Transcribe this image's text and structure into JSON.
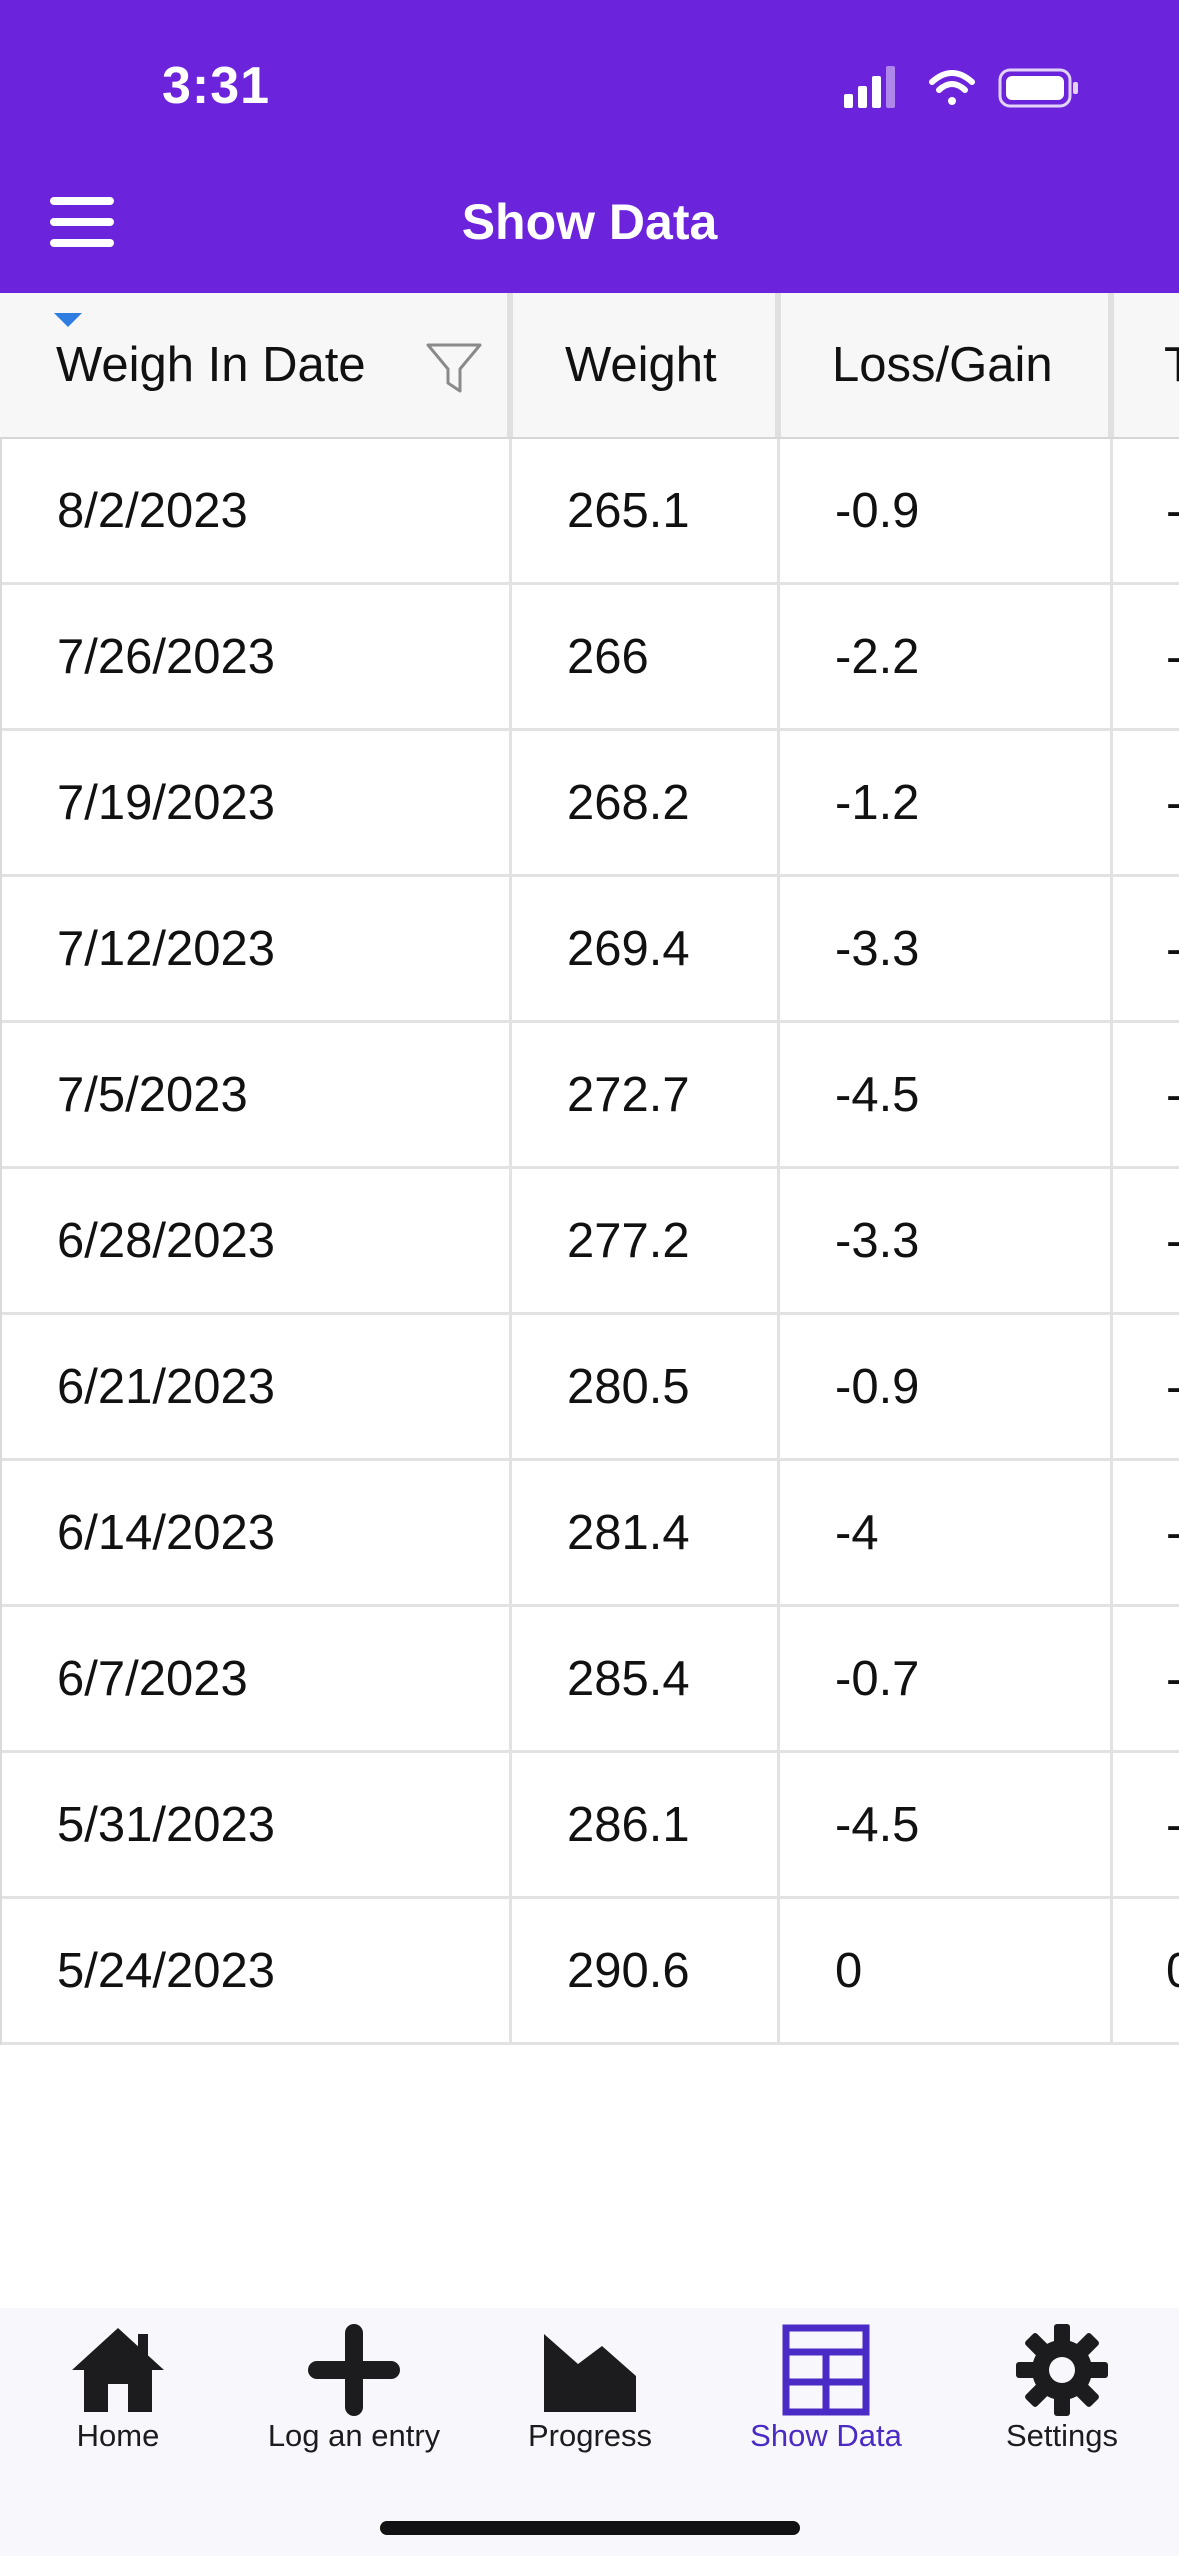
{
  "status_bar": {
    "time": "3:31"
  },
  "header": {
    "title": "Show Data"
  },
  "grid": {
    "columns": [
      "Weigh In Date",
      "Weight",
      "Loss/Gain",
      "T"
    ],
    "rows": [
      {
        "date": "8/2/2023",
        "weight": "265.1",
        "loss_gain": "-0.9",
        "partial": "-"
      },
      {
        "date": "7/26/2023",
        "weight": "266",
        "loss_gain": "-2.2",
        "partial": "-"
      },
      {
        "date": "7/19/2023",
        "weight": "268.2",
        "loss_gain": "-1.2",
        "partial": "-"
      },
      {
        "date": "7/12/2023",
        "weight": "269.4",
        "loss_gain": "-3.3",
        "partial": "-"
      },
      {
        "date": "7/5/2023",
        "weight": "272.7",
        "loss_gain": "-4.5",
        "partial": "-"
      },
      {
        "date": "6/28/2023",
        "weight": "277.2",
        "loss_gain": "-3.3",
        "partial": "-"
      },
      {
        "date": "6/21/2023",
        "weight": "280.5",
        "loss_gain": "-0.9",
        "partial": "-"
      },
      {
        "date": "6/14/2023",
        "weight": "281.4",
        "loss_gain": "-4",
        "partial": "-"
      },
      {
        "date": "6/7/2023",
        "weight": "285.4",
        "loss_gain": "-0.7",
        "partial": "-"
      },
      {
        "date": "5/31/2023",
        "weight": "286.1",
        "loss_gain": "-4.5",
        "partial": "-"
      },
      {
        "date": "5/24/2023",
        "weight": "290.6",
        "loss_gain": "0",
        "partial": "0"
      }
    ]
  },
  "tabbar": {
    "tabs": [
      {
        "label": "Home",
        "icon": "home-icon"
      },
      {
        "label": "Log an entry",
        "icon": "plus-icon"
      },
      {
        "label": "Progress",
        "icon": "chart-icon"
      },
      {
        "label": "Show Data",
        "icon": "table-icon",
        "active": true
      },
      {
        "label": "Settings",
        "icon": "gear-icon"
      }
    ]
  },
  "colors": {
    "header": "#6c23dc",
    "active_tab": "#4a2bc5",
    "sort_indicator": "#2f7de0"
  }
}
